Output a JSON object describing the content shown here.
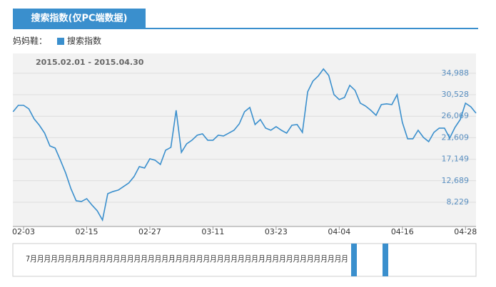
{
  "header": {
    "tab": "搜索指数(仅PC端数据)"
  },
  "chart_data": {
    "type": "line",
    "keyword": "妈妈鞋：",
    "date_range": "2015.02.01 - 2015.04.30",
    "categories": [
      null,
      null,
      "02-03",
      null,
      null,
      null,
      null,
      null,
      null,
      null,
      null,
      null,
      null,
      null,
      "02-15",
      null,
      null,
      null,
      null,
      null,
      null,
      null,
      null,
      null,
      null,
      null,
      "02-27",
      null,
      null,
      null,
      null,
      null,
      null,
      null,
      null,
      null,
      null,
      null,
      "03-11",
      null,
      null,
      null,
      null,
      null,
      null,
      null,
      null,
      null,
      null,
      null,
      "03-23",
      null,
      null,
      null,
      null,
      null,
      null,
      null,
      null,
      null,
      null,
      null,
      "04-04",
      null,
      null,
      null,
      null,
      null,
      null,
      null,
      null,
      null,
      null,
      null,
      "04-16",
      null,
      null,
      null,
      null,
      null,
      null,
      null,
      null,
      null,
      null,
      null,
      "04-28",
      null,
      null
    ],
    "series": [
      {
        "name": "搜索指数",
        "color": "#3a8fcd",
        "values": [
          27005,
          28335,
          28335,
          27596,
          25526,
          24196,
          22569,
          19908,
          19465,
          16952,
          14290,
          11038,
          8525,
          8377,
          8968,
          7638,
          6455,
          4533,
          10003,
          10447,
          10742,
          11481,
          12221,
          13551,
          15621,
          15325,
          17247,
          16952,
          16064,
          19021,
          19613,
          27300,
          18578,
          20352,
          21091,
          22126,
          22422,
          21091,
          21091,
          22126,
          21978,
          22569,
          23161,
          24491,
          27005,
          27892,
          24344,
          25378,
          23604,
          23161,
          23900,
          23161,
          22569,
          24196,
          24344,
          22717,
          31144,
          33362,
          34397,
          35875,
          34544,
          30553,
          29518,
          29961,
          32475,
          31440,
          28779,
          28187,
          27300,
          26265,
          28483,
          28631,
          28483,
          30553,
          24787,
          21387,
          21387,
          23161,
          21682,
          20795,
          22717,
          23604,
          23604,
          21535,
          23752,
          25378,
          28779,
          28040,
          26709
        ]
      }
    ],
    "ylim": [
      3200,
      39100
    ],
    "yticks": [
      {
        "value": 8229,
        "label": "8,229"
      },
      {
        "value": 12689,
        "label": "12,689"
      },
      {
        "value": 17149,
        "label": "17,149"
      },
      {
        "value": 21609,
        "label": "21,609"
      },
      {
        "value": 26069,
        "label": "26,069"
      },
      {
        "value": 30528,
        "label": "30,528"
      },
      {
        "value": 34988,
        "label": "34,988"
      }
    ],
    "grid": true
  },
  "navigator": {
    "label": "7月月月月月月月月月月月月月月月月月月月月月月月月月月月月月月月月月月月月月月月月月月月月月月"
  }
}
